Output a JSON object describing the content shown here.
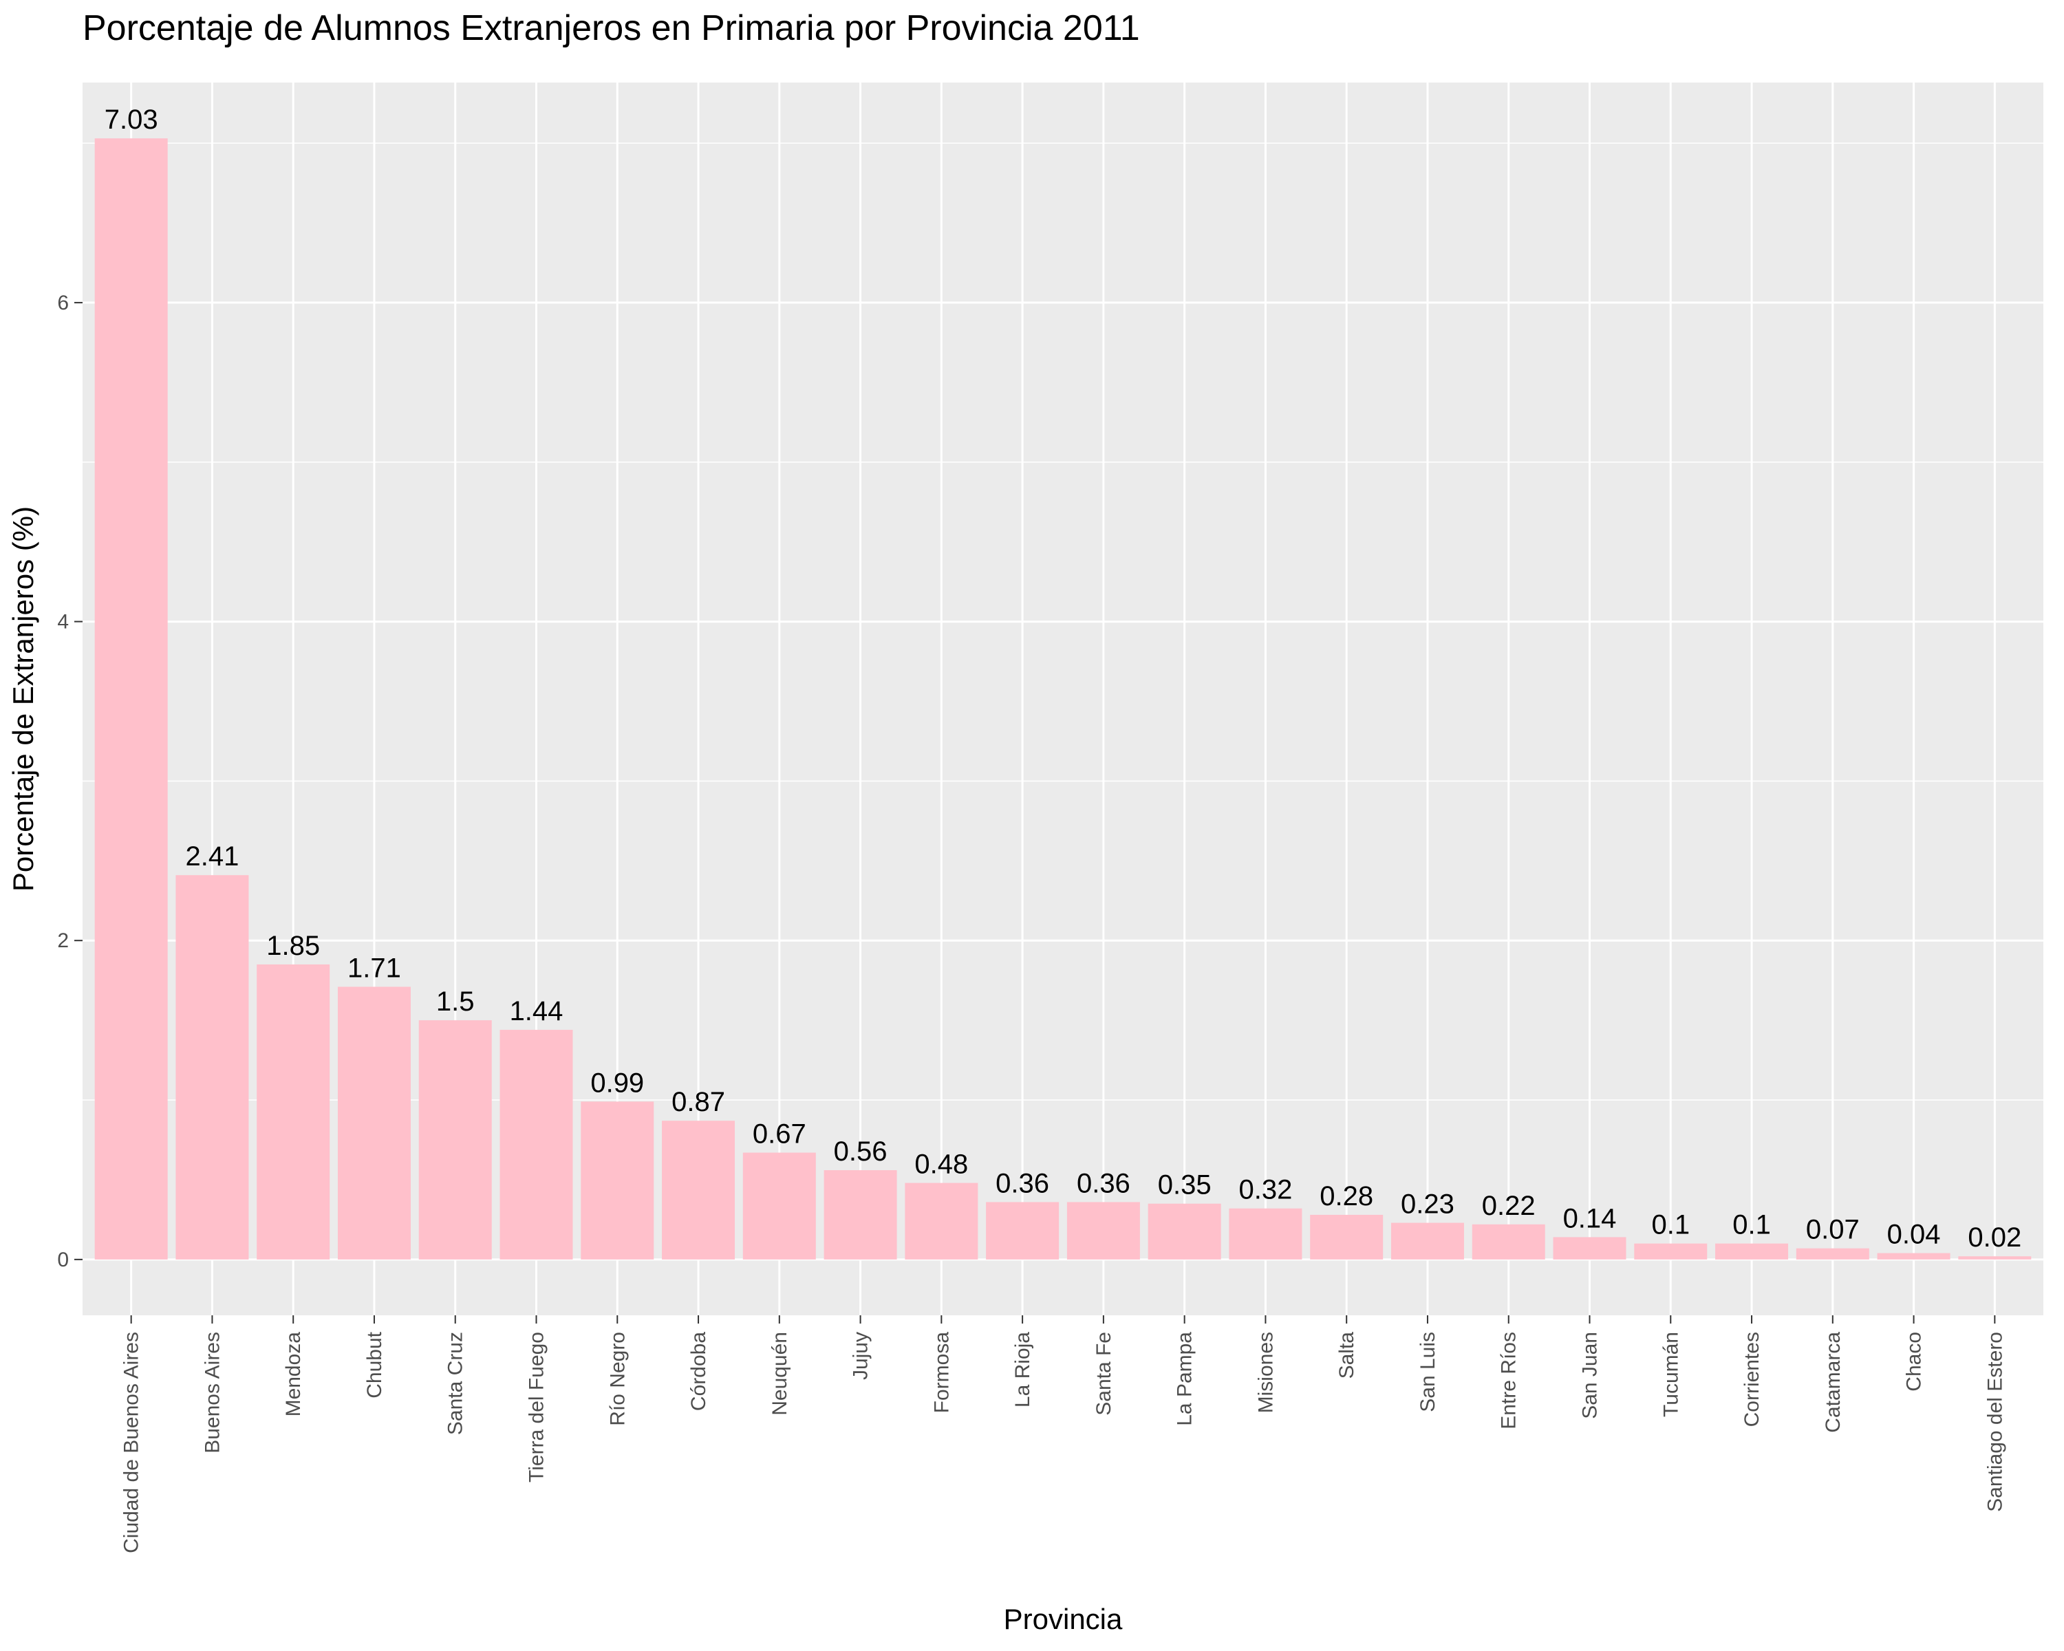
{
  "chart_data": {
    "type": "bar",
    "title": "Porcentaje de Alumnos Extranjeros en Primaria por Provincia 2011",
    "xlabel": "Provincia",
    "ylabel": "Porcentaje de Extranjeros (%)",
    "categories": [
      "Ciudad de Buenos Aires",
      "Buenos Aires",
      "Mendoza",
      "Chubut",
      "Santa Cruz",
      "Tierra del Fuego",
      "Río Negro",
      "Córdoba",
      "Neuquén",
      "Jujuy",
      "Formosa",
      "La Rioja",
      "Santa Fe",
      "La Pampa",
      "Misiones",
      "Salta",
      "San Luis",
      "Entre Ríos",
      "San Juan",
      "Tucumán",
      "Corrientes",
      "Catamarca",
      "Chaco",
      "Santiago del Estero"
    ],
    "values": [
      7.03,
      2.41,
      1.85,
      1.71,
      1.5,
      1.44,
      0.99,
      0.87,
      0.67,
      0.56,
      0.48,
      0.36,
      0.36,
      0.35,
      0.32,
      0.28,
      0.23,
      0.22,
      0.14,
      0.1,
      0.1,
      0.07,
      0.04,
      0.02
    ],
    "data_labels": [
      "7.03",
      "2.41",
      "1.85",
      "1.71",
      "1.5",
      "1.44",
      "0.99",
      "0.87",
      "0.67",
      "0.56",
      "0.48",
      "0.36",
      "0.36",
      "0.35",
      "0.32",
      "0.28",
      "0.23",
      "0.22",
      "0.14",
      "0.1",
      "0.1",
      "0.07",
      "0.04",
      "0.02"
    ],
    "yticks": [
      0,
      2,
      4,
      6
    ],
    "ylim": [
      -0.35,
      7.38
    ],
    "grid": true,
    "legend": "none",
    "bar_color": "#ffc0cb",
    "panel_color": "#ebebeb",
    "grid_color": "#ffffff"
  }
}
